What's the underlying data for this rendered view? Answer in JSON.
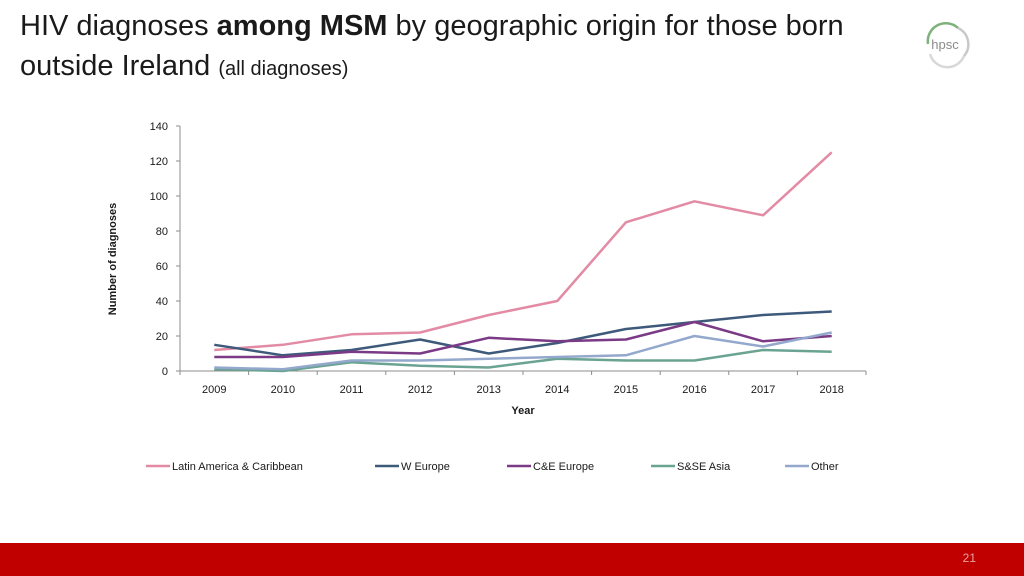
{
  "slide": {
    "title_part1": "HIV diagnoses ",
    "title_bold": "among MSM",
    "title_part2": " by geographic origin for those born outside Ireland ",
    "title_small": "(all diagnoses)",
    "logo_text": "hpsc",
    "page_number": "21",
    "colors": {
      "footer": "#c00000",
      "logo": "#8a8a8a",
      "logo_arc": "#7fb27a"
    }
  },
  "chart_data": {
    "type": "line",
    "xlabel": "Year",
    "ylabel": "Number of diagnoses",
    "ylim": [
      0,
      140
    ],
    "yticks": [
      "0",
      "20",
      "40",
      "60",
      "80",
      "100",
      "120",
      "140"
    ],
    "categories": [
      "2009",
      "2010",
      "2011",
      "2012",
      "2013",
      "2014",
      "2015",
      "2016",
      "2017",
      "2018"
    ],
    "legend_position": "bottom",
    "grid": false,
    "series": [
      {
        "name": "Latin America & Caribbean",
        "color": "#e38ba5",
        "values": [
          12,
          15,
          21,
          22,
          32,
          40,
          85,
          97,
          89,
          125
        ]
      },
      {
        "name": "W Europe",
        "color": "#3e5a7a",
        "values": [
          15,
          9,
          12,
          18,
          10,
          16,
          24,
          28,
          32,
          34
        ]
      },
      {
        "name": "C&E Europe",
        "color": "#7b3a85",
        "values": [
          8,
          8,
          11,
          10,
          19,
          17,
          18,
          28,
          17,
          20
        ]
      },
      {
        "name": "S&SE Asia",
        "color": "#6aa392",
        "values": [
          1,
          0,
          5,
          3,
          2,
          7,
          6,
          6,
          12,
          11
        ]
      },
      {
        "name": "Other",
        "color": "#93a8cc",
        "values": [
          2,
          1,
          6,
          6,
          7,
          8,
          9,
          20,
          14,
          22
        ]
      }
    ]
  }
}
